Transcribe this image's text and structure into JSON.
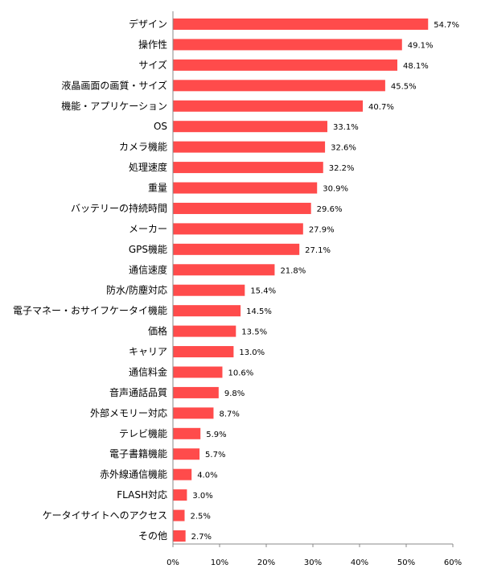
{
  "chart_data": {
    "type": "bar",
    "orientation": "horizontal",
    "categories": [
      "デザイン",
      "操作性",
      "サイズ",
      "液晶画面の画質・サイズ",
      "機能・アプリケーション",
      "OS",
      "カメラ機能",
      "処理速度",
      "重量",
      "バッテリーの持続時間",
      "メーカー",
      "GPS機能",
      "通信速度",
      "防水/防塵対応",
      "電子マネー・おサイフケータイ機能",
      "価格",
      "キャリア",
      "通信料金",
      "音声通話品質",
      "外部メモリー対応",
      "テレビ機能",
      "電子書籍機能",
      "赤外線通信機能",
      "FLASH対応",
      "ケータイサイトへのアクセス",
      "その他"
    ],
    "values": [
      54.7,
      49.1,
      48.1,
      45.5,
      40.7,
      33.1,
      32.6,
      32.2,
      30.9,
      29.6,
      27.9,
      27.1,
      21.8,
      15.4,
      14.5,
      13.5,
      13.0,
      10.6,
      9.8,
      8.7,
      5.9,
      5.7,
      4.0,
      3.0,
      2.5,
      2.7
    ],
    "value_labels": [
      "54.7%",
      "49.1%",
      "48.1%",
      "45.5%",
      "40.7%",
      "33.1%",
      "32.6%",
      "32.2%",
      "30.9%",
      "29.6%",
      "27.9%",
      "27.1%",
      "21.8%",
      "15.4%",
      "14.5%",
      "13.5%",
      "13.0%",
      "10.6%",
      "9.8%",
      "8.7%",
      "5.9%",
      "5.7%",
      "4.0%",
      "3.0%",
      "2.5%",
      "2.7%"
    ],
    "xticks": [
      "0%",
      "10%",
      "20%",
      "30%",
      "40%",
      "50%",
      "60%"
    ],
    "xlim": [
      0,
      60
    ],
    "title": "",
    "xlabel": "",
    "ylabel": "",
    "grid": false,
    "legend": "none",
    "bar_color": "#ff4b4b",
    "axis_color": "#888888"
  }
}
